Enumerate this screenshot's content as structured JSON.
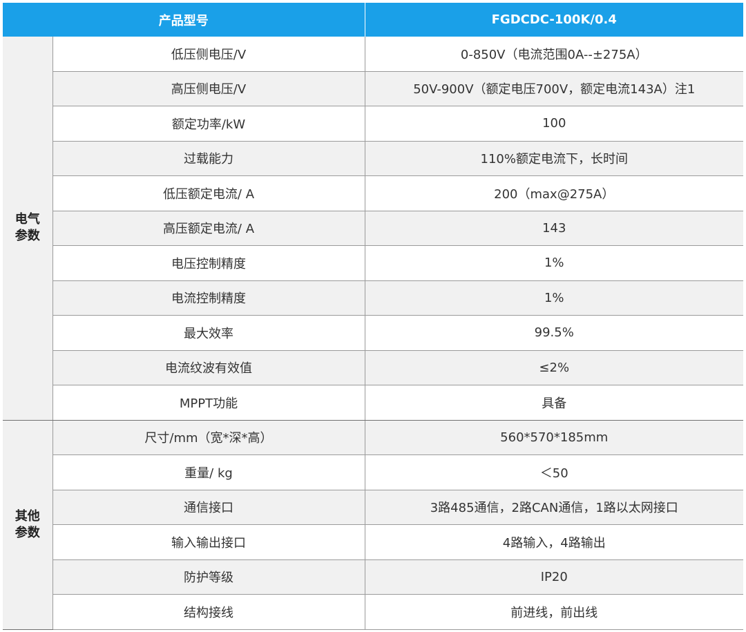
{
  "header": {
    "col1": "产品型号",
    "col2": "FGDCDC-100K/0.4"
  },
  "groups": [
    {
      "label_line1": "电气",
      "label_line2": "参数",
      "rows": [
        {
          "name": "低压侧电压/V",
          "value": "0-850V（电流范围0A--±275A）"
        },
        {
          "name": "高压侧电压/V",
          "value": "50V-900V（额定电压700V，额定电流143A）注1"
        },
        {
          "name": "额定功率/kW",
          "value": "100"
        },
        {
          "name": "过载能力",
          "value": "110%额定电流下，长时间"
        },
        {
          "name": "低压额定电流/ A",
          "value": "200（max@275A）"
        },
        {
          "name": "高压额定电流/ A",
          "value": "143"
        },
        {
          "name": "电压控制精度",
          "value": "1%"
        },
        {
          "name": "电流控制精度",
          "value": "1%"
        },
        {
          "name": "最大效率",
          "value": "99.5%"
        },
        {
          "name": "电流纹波有效值",
          "value": "≤2%"
        },
        {
          "name": "MPPT功能",
          "value": "具备"
        }
      ]
    },
    {
      "label_line1": "其他",
      "label_line2": "参数",
      "rows": [
        {
          "name": "尺寸/mm（宽*深*高）",
          "value": "560*570*185mm"
        },
        {
          "name": "重量/ kg",
          "value": "＜50"
        },
        {
          "name": "通信接口",
          "value": "3路485通信，2路CAN通信，1路以太网接口"
        },
        {
          "name": "输入输出接口",
          "value": "4路输入，4路输出"
        },
        {
          "name": "防护等级",
          "value": "IP20"
        },
        {
          "name": "结构接线",
          "value": "前进线，前出线"
        }
      ]
    }
  ],
  "colors": {
    "header_bg": "#1aa0e8",
    "alt_row_bg": "#f1f1f1",
    "border": "#9a9a9a"
  }
}
